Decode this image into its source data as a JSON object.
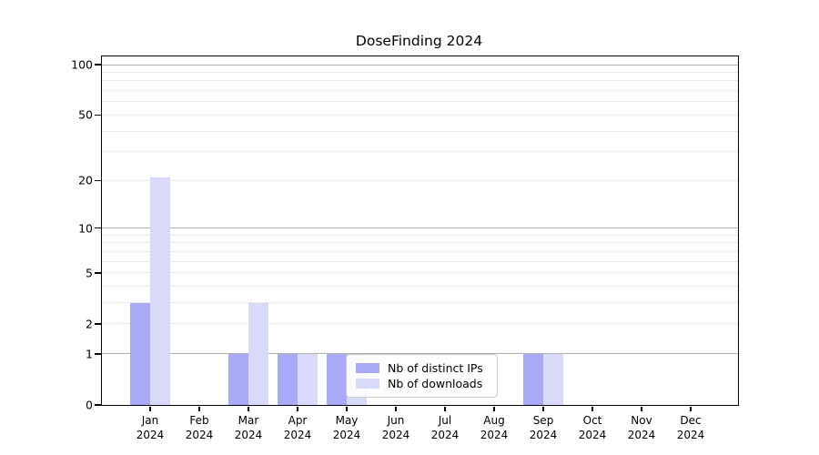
{
  "chart_data": {
    "type": "bar",
    "title": "DoseFinding 2024",
    "categories": [
      "Jan 2024",
      "Feb 2024",
      "Mar 2024",
      "Apr 2024",
      "May 2024",
      "Jun 2024",
      "Jul 2024",
      "Aug 2024",
      "Sep 2024",
      "Oct 2024",
      "Nov 2024",
      "Dec 2024"
    ],
    "series": [
      {
        "name": "Nb of distinct IPs",
        "color": "#a9a9f7",
        "values": [
          3,
          0,
          1,
          1,
          1,
          0,
          0,
          0,
          1,
          0,
          0,
          0
        ]
      },
      {
        "name": "Nb of downloads",
        "color": "#d9d9fa",
        "values": [
          21,
          0,
          3,
          1,
          1,
          0,
          0,
          0,
          1,
          0,
          0,
          0
        ]
      }
    ],
    "xlabel": "",
    "ylabel": "",
    "y_scale": "log10(1+x)",
    "ylim": [
      0,
      112
    ],
    "y_ticks": [
      0,
      1,
      2,
      5,
      10,
      20,
      50,
      100
    ],
    "y_major_gridlines": [
      1,
      10,
      100
    ],
    "y_minor_gridlines": [
      2,
      3,
      4,
      5,
      6,
      7,
      8,
      9,
      20,
      30,
      40,
      50,
      60,
      70,
      80,
      90
    ],
    "grid": "on",
    "legend_position": "lower center"
  },
  "colors": {
    "grid_major": "#b0b0b0",
    "grid_minor": "#ebebeb",
    "axis": "#000000",
    "legend_border": "#cccccc",
    "background": "#ffffff"
  }
}
